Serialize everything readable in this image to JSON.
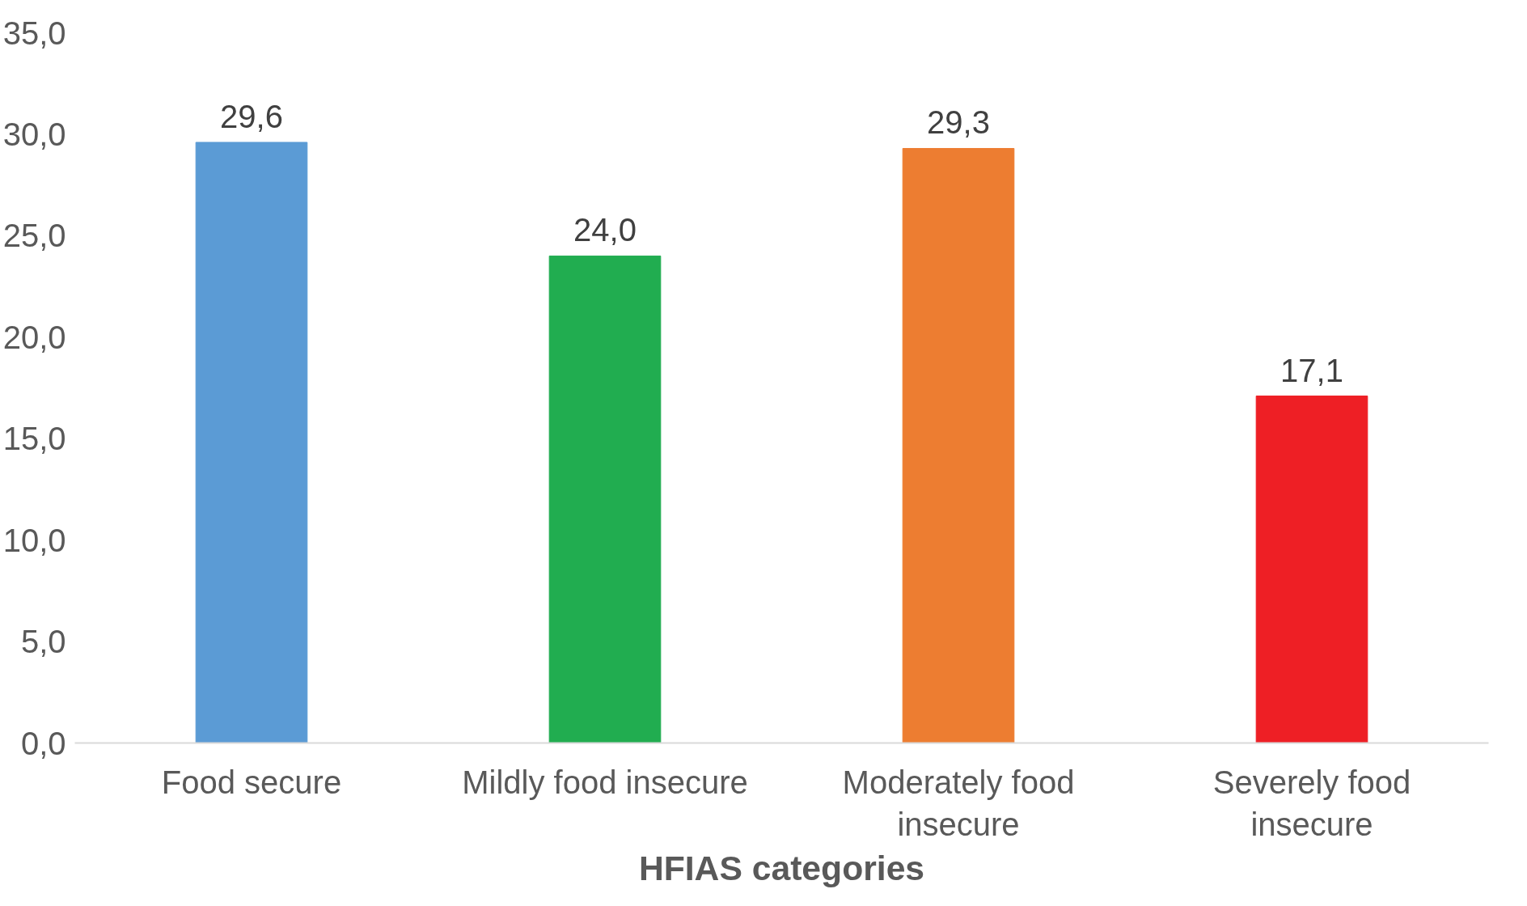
{
  "chart_data": {
    "type": "bar",
    "xlabel": "HFIAS categories",
    "categories": [
      "Food secure",
      "Mildly food insecure",
      "Moderately food insecure",
      "Severely food insecure"
    ],
    "values": [
      29.6,
      24.0,
      29.3,
      17.1
    ],
    "colors": [
      "#5b9bd5",
      "#21ad50",
      "#ed7d31",
      "#ee1f25"
    ],
    "value_labels": [
      "29,6",
      "24,0",
      "29,3",
      "17,1"
    ],
    "ylim": [
      0,
      35
    ],
    "yticks": [
      {
        "value": 0,
        "label": "0,0"
      },
      {
        "value": 5,
        "label": "5,0"
      },
      {
        "value": 10,
        "label": "10,0"
      },
      {
        "value": 15,
        "label": "15,0"
      },
      {
        "value": 20,
        "label": "20,0"
      },
      {
        "value": 25,
        "label": "25,0"
      },
      {
        "value": 30,
        "label": "30,0"
      },
      {
        "value": 35,
        "label": "35,0"
      }
    ],
    "grid": false
  }
}
